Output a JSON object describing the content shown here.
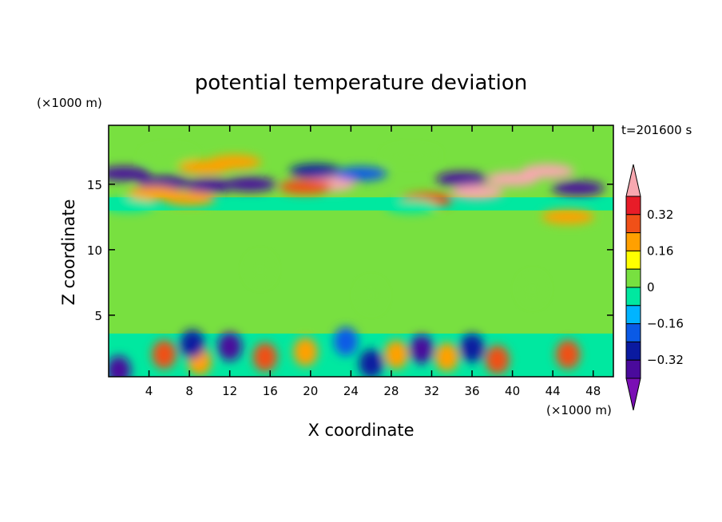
{
  "chart_data": {
    "type": "heatmap",
    "title": "potential temperature deviation",
    "xlabel": "X coordinate",
    "ylabel": "Z coordinate",
    "x_unit": "(×1000 m)",
    "y_unit": "(×1000 m)",
    "time_label": "t=201600 s",
    "xlim": [
      0,
      50
    ],
    "ylim": [
      0.3,
      19.5
    ],
    "x_ticks": [
      4,
      8,
      12,
      16,
      20,
      24,
      28,
      32,
      36,
      40,
      44,
      48
    ],
    "x_tick_labels": [
      "4",
      "8",
      "12",
      "16",
      "20",
      "24",
      "28",
      "32",
      "36",
      "40",
      "44",
      "48"
    ],
    "y_ticks": [
      5,
      10,
      15
    ],
    "y_tick_labels": [
      "5",
      "10",
      "15"
    ],
    "colorbar": {
      "levels": [
        -0.4,
        -0.32,
        -0.24,
        -0.16,
        -0.08,
        0,
        0.08,
        0.16,
        0.24,
        0.32,
        0.4
      ],
      "tick_values": [
        0.32,
        0.16,
        0,
        -0.16,
        -0.32
      ],
      "tick_labels": [
        "0.32",
        "0.16",
        "0",
        "−0.16",
        "−0.32"
      ],
      "colors": [
        "#7a0fb4",
        "#4a0a9c",
        "#0a1aa0",
        "#0a5ae6",
        "#00b4ff",
        "#00e8a0",
        "#78e040",
        "#ffff00",
        "#ffa000",
        "#f05018",
        "#e81c28",
        "#f8a8b0"
      ],
      "extend": "both"
    },
    "features": [
      {
        "x": 1.5,
        "z": 15.8,
        "value": -0.36
      },
      {
        "x": 5.5,
        "z": 15.1,
        "value": -0.4
      },
      {
        "x": 10.0,
        "z": 14.9,
        "value": -0.34
      },
      {
        "x": 14.0,
        "z": 15.0,
        "value": -0.33
      },
      {
        "x": 4.5,
        "z": 14.3,
        "value": 0.22
      },
      {
        "x": 8.0,
        "z": 13.9,
        "value": 0.2
      },
      {
        "x": 9.5,
        "z": 16.3,
        "value": 0.18
      },
      {
        "x": 12.5,
        "z": 16.7,
        "value": 0.2
      },
      {
        "x": 21.8,
        "z": 15.0,
        "value": 0.42
      },
      {
        "x": 19.5,
        "z": 14.8,
        "value": 0.25
      },
      {
        "x": 20.5,
        "z": 16.0,
        "value": -0.28
      },
      {
        "x": 25.0,
        "z": 15.8,
        "value": -0.22
      },
      {
        "x": 35.0,
        "z": 15.4,
        "value": -0.36
      },
      {
        "x": 36.5,
        "z": 14.4,
        "value": 0.42
      },
      {
        "x": 40.0,
        "z": 15.4,
        "value": 0.42
      },
      {
        "x": 43.5,
        "z": 16.0,
        "value": 0.4
      },
      {
        "x": 31.5,
        "z": 13.8,
        "value": 0.3
      },
      {
        "x": 46.5,
        "z": 14.7,
        "value": -0.33
      },
      {
        "x": 45.5,
        "z": 12.5,
        "value": 0.2
      },
      {
        "x": 6.0,
        "z": 17.2,
        "value": 0.06
      },
      {
        "x": 30.0,
        "z": 17.2,
        "value": 0.05
      },
      {
        "x": 2.0,
        "z": 13.4,
        "value": -0.03
      },
      {
        "x": 30.0,
        "z": 13.3,
        "value": -0.03
      },
      {
        "x": 15.0,
        "z": 8.5,
        "value": 0.05
      },
      {
        "x": 42.0,
        "z": 7.0,
        "value": 0.05
      },
      {
        "x": 26.0,
        "z": 6.5,
        "value": 0.04
      },
      {
        "x": 5.5,
        "z": 2.0,
        "value": 0.24
      },
      {
        "x": 9.0,
        "z": 1.5,
        "value": 0.2
      },
      {
        "x": 15.5,
        "z": 1.8,
        "value": 0.26
      },
      {
        "x": 19.5,
        "z": 2.2,
        "value": 0.18
      },
      {
        "x": 28.5,
        "z": 2.0,
        "value": 0.18
      },
      {
        "x": 33.5,
        "z": 1.8,
        "value": 0.18
      },
      {
        "x": 38.5,
        "z": 1.6,
        "value": 0.26
      },
      {
        "x": 45.5,
        "z": 2.0,
        "value": 0.28
      },
      {
        "x": 12.0,
        "z": 2.6,
        "value": -0.33
      },
      {
        "x": 31.0,
        "z": 2.4,
        "value": -0.4
      },
      {
        "x": 26.0,
        "z": 1.3,
        "value": -0.3
      },
      {
        "x": 8.3,
        "z": 2.8,
        "value": -0.3
      },
      {
        "x": 1.0,
        "z": 0.8,
        "value": -0.35
      },
      {
        "x": 36.0,
        "z": 2.5,
        "value": -0.28
      },
      {
        "x": 23.5,
        "z": 3.0,
        "value": -0.18
      }
    ]
  }
}
